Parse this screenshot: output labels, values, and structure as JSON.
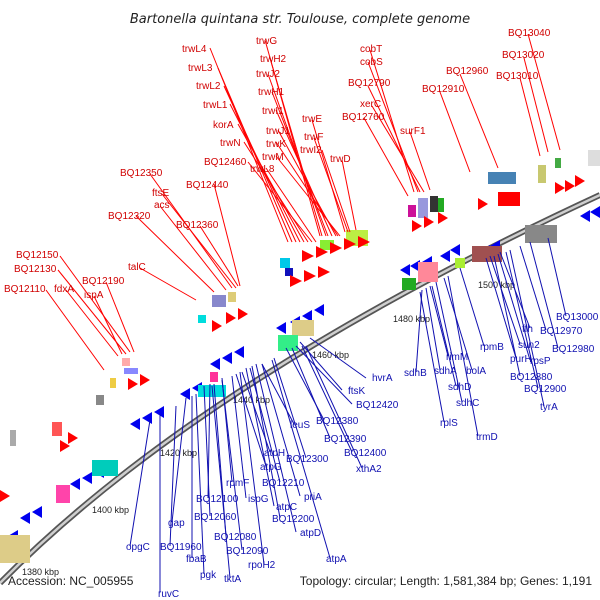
{
  "title": "Bartonella quintana str. Toulouse, complete genome",
  "footer": {
    "accession": "Accession: NC_005955",
    "summary": "Topology: circular; Length: 1,581,384 bp; Genes: 1,191"
  },
  "ticks": [
    "1380 kbp",
    "1400 kbp",
    "1420 kbp",
    "1440 kbp",
    "1460 kbp",
    "1480 kbp",
    "1500 kbp"
  ],
  "colors": {
    "forward": "#ff0000",
    "reverse": "#0000ee",
    "backbone": "#888888"
  },
  "forward_labels": [
    "trwL4",
    "trwL3",
    "trwL2",
    "trwL1",
    "korA",
    "trwN",
    "BQ12460",
    "trwL8",
    "trwG",
    "trwH2",
    "trwJ2",
    "trwH1",
    "trwI1",
    "trwJ1",
    "trwK",
    "trwM",
    "trwE",
    "trwF",
    "trwI2",
    "trwD",
    "cobT",
    "cobS",
    "BQ12790",
    "xerC",
    "BQ12760",
    "surF1",
    "BQ12960",
    "BQ12910",
    "BQ13040",
    "BQ13020",
    "BQ13010",
    "BQ12350",
    "ftsE",
    "acs",
    "BQ12440",
    "BQ12320",
    "BQ12360",
    "BQ12150",
    "BQ12130",
    "BQ12190",
    "talC",
    "BQ12110",
    "fdxA",
    "ispA"
  ],
  "reverse_labels": [
    "hvrA",
    "ftsK",
    "BQ12420",
    "leuS",
    "BQ12380",
    "BQ12390",
    "BQ12300",
    "BQ12400",
    "atpH",
    "atpG",
    "BQ12210",
    "xthA2",
    "rpmF",
    "priA",
    "BQ12100",
    "ispG",
    "atpC",
    "BQ12200",
    "gap",
    "BQ12060",
    "atpD",
    "BQ12080",
    "opgC",
    "BQ11960",
    "BQ12090",
    "rpoH2",
    "atpA",
    "fbaB",
    "pgk",
    "tktA",
    "ruvC",
    "sdhB",
    "rimM",
    "sdhA",
    "bolA",
    "sdhD",
    "sdhC",
    "rplS",
    "trmD",
    "rpmB",
    "purH",
    "sun2",
    "BQ12880",
    "rpsP",
    "BQ12900",
    "tyrA",
    "ffh",
    "BQ12970",
    "BQ12980",
    "BQ13000"
  ]
}
